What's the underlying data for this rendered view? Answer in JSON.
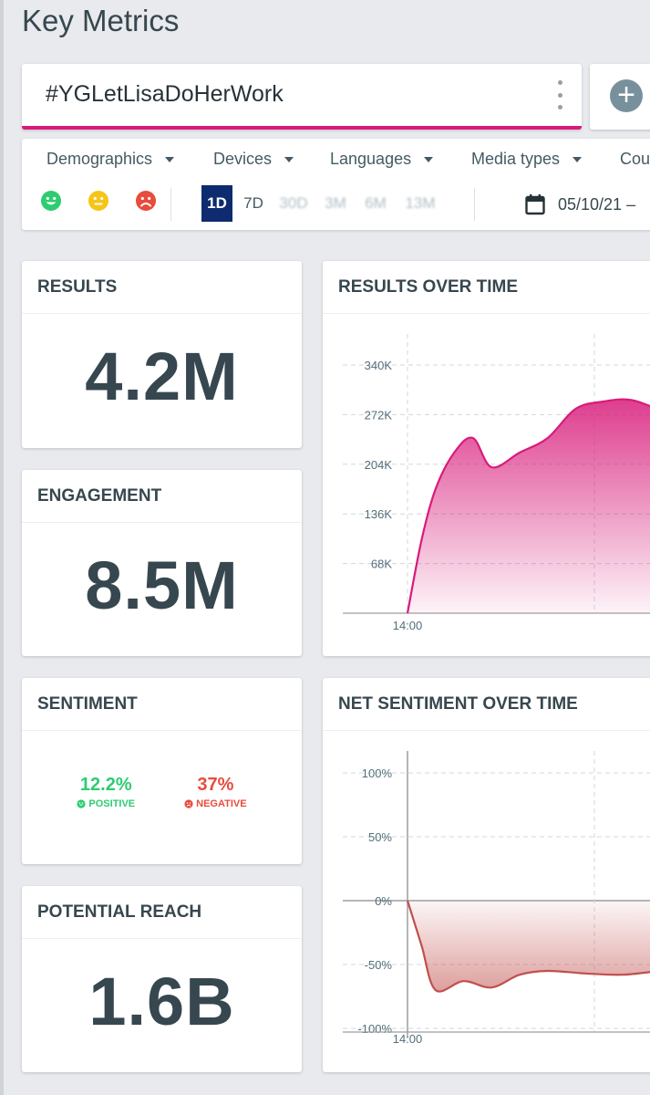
{
  "page": {
    "title": "Key Metrics"
  },
  "search": {
    "query": "#YGLetLisaDoHerWork"
  },
  "filters": {
    "dropdowns": [
      "Demographics",
      "Devices",
      "Languages",
      "Media types",
      "Cou"
    ],
    "sentiment_faces": [
      "positive",
      "neutral",
      "negative"
    ],
    "ranges": [
      "1D",
      "7D",
      "30D",
      "3M",
      "6M",
      "13M"
    ],
    "active_range": "1D",
    "date": "05/10/21 –"
  },
  "colors": {
    "accent": "#d81b7a",
    "active_range": "#0d2b6e",
    "positive": "#2ecc71",
    "neutral": "#f5c518",
    "negative": "#e74c3c",
    "results_line": "#d81b7a",
    "sentiment_line": "#c0504d"
  },
  "metrics": {
    "results": {
      "label": "RESULTS",
      "value": "4.2M"
    },
    "engagement": {
      "label": "ENGAGEMENT",
      "value": "8.5M"
    },
    "sentiment": {
      "label": "SENTIMENT",
      "positive_value": "12.2%",
      "positive_label": "POSITIVE",
      "negative_value": "37%",
      "negative_label": "NEGATIVE"
    },
    "reach": {
      "label": "POTENTIAL REACH",
      "value": "1.6B"
    }
  },
  "charts": {
    "results_title": "RESULTS OVER TIME",
    "sentiment_title": "NET SENTIMENT OVER TIME"
  },
  "chart_data": [
    {
      "type": "area",
      "title": "RESULTS OVER TIME",
      "x_tick_labels": [
        "14:00"
      ],
      "y_tick_labels": [
        "68K",
        "136K",
        "204K",
        "272K",
        "340K"
      ],
      "ylim": [
        0,
        340000
      ],
      "x_hours": [
        13.0,
        13.3,
        13.6,
        14.0,
        14.15,
        14.3,
        14.5,
        14.7,
        14.9,
        15.2,
        15.5,
        15.8,
        16.1,
        16.4,
        16.8,
        17.2,
        17.6,
        17.9
      ],
      "values": [
        0,
        0,
        0,
        0,
        100000,
        170000,
        220000,
        240000,
        200000,
        220000,
        240000,
        280000,
        290000,
        292000,
        275000,
        272000,
        265000,
        262000
      ],
      "grid": true
    },
    {
      "type": "area",
      "title": "NET SENTIMENT OVER TIME",
      "x_tick_labels": [
        "14:00"
      ],
      "y_tick_labels": [
        "-100%",
        "-50%",
        "0%",
        "50%",
        "100%"
      ],
      "ylim": [
        -100,
        100
      ],
      "x_hours": [
        13.0,
        13.4,
        13.7,
        14.0,
        14.15,
        14.3,
        14.6,
        14.9,
        15.2,
        15.5,
        15.9,
        16.3,
        16.7,
        17.1,
        17.5,
        17.9
      ],
      "values": [
        0,
        0,
        0,
        0,
        -35,
        -70,
        -63,
        -68,
        -58,
        -55,
        -57,
        -58,
        -55,
        -52,
        -44,
        -38
      ],
      "grid": true
    }
  ]
}
